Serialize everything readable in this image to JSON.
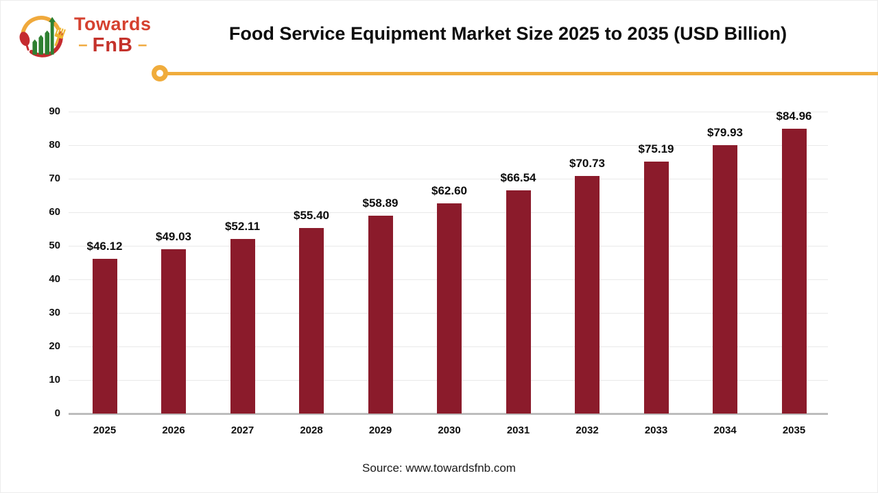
{
  "brand": {
    "name_top": "Towards",
    "name_bottom": "FnB",
    "dash_left": "–",
    "dash_right": "–"
  },
  "header": {
    "title": "Food Service Equipment Market Size 2025 to 2035 (USD Billion)"
  },
  "chart_data": {
    "type": "bar",
    "title": "Food Service Equipment Market Size 2025 to 2035 (USD Billion)",
    "categories": [
      "2025",
      "2026",
      "2027",
      "2028",
      "2029",
      "2030",
      "2031",
      "2032",
      "2033",
      "2034",
      "2035"
    ],
    "values": [
      46.12,
      49.03,
      52.11,
      55.4,
      58.89,
      62.6,
      66.54,
      70.73,
      75.19,
      79.93,
      84.96
    ],
    "value_labels": [
      "$46.12",
      "$49.03",
      "$52.11",
      "$55.40",
      "$58.89",
      "$62.60",
      "$66.54",
      "$70.73",
      "$75.19",
      "$79.93",
      "$84.96"
    ],
    "unit": "USD Billion",
    "xlabel": "",
    "ylabel": "",
    "ylim": [
      0,
      90
    ],
    "yticks": [
      0,
      10,
      20,
      30,
      40,
      50,
      60,
      70,
      80,
      90
    ],
    "grid": true,
    "legend": "none",
    "bar_color": "#8b1b2b"
  },
  "footer": {
    "source": "Source: www.towardsfnb.com"
  },
  "colors": {
    "accent_line": "#f0ac3c",
    "bar": "#8b1b2b",
    "gridline": "#e9e9e9",
    "axis_line": "#bdbdbd",
    "text": "#0d0d0d",
    "logo_red": "#c52b2f",
    "logo_green": "#2e8031",
    "logo_yellow": "#f0a93c"
  }
}
